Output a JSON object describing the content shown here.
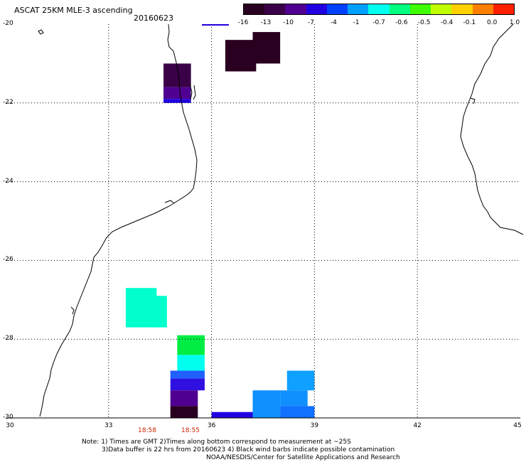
{
  "header": {
    "title": "ASCAT 25KM MLE-3 ascending",
    "date": "20160623"
  },
  "colorbar": {
    "labels": [
      "-16",
      "-13",
      "-10",
      "-7",
      "-4",
      "-1",
      "-0.7",
      "-0.6",
      "-0.5",
      "-0.4",
      "-0.1",
      "0.0",
      "1.0"
    ],
    "colors": [
      "#2a0020",
      "#3a0048",
      "#500090",
      "#2000e0",
      "#0040ff",
      "#00a0ff",
      "#00ffee",
      "#00ff80",
      "#40ff00",
      "#c0ff00",
      "#ffd000",
      "#ff8000",
      "#ff2000"
    ]
  },
  "axes": {
    "x_ticks": [
      "30",
      "33",
      "36",
      "39",
      "42",
      "45"
    ],
    "y_ticks": [
      "-20",
      "-22",
      "-24",
      "-26",
      "-28",
      "-30"
    ],
    "x_range": [
      30,
      45
    ],
    "y_range": [
      -30,
      -20
    ],
    "grid": "dotted"
  },
  "times": [
    "18:58",
    "18:55"
  ],
  "notes": [
    "Note: 1) Times are GMT 2)Times along bottom correspond to measurement at ~25S",
    "3)Data buffer is 22 hrs from 20160623 4) Black wind barbs indicate possible contamination",
    "NOAA/NESDIS/Center for Satellite Applications and Research"
  ],
  "map_data": {
    "type": "swath-cells",
    "cells": [
      {
        "lon": [
          36.4,
          37.3
        ],
        "lat": [
          -21.2,
          -20.4
        ],
        "color": "#2a0020"
      },
      {
        "lon": [
          37.2,
          38.0
        ],
        "lat": [
          -21.0,
          -20.2
        ],
        "color": "#2a0020"
      },
      {
        "lon": [
          34.6,
          35.4
        ],
        "lat": [
          -21.6,
          -21.0
        ],
        "color": "#3a0048"
      },
      {
        "lon": [
          34.6,
          35.4
        ],
        "lat": [
          -21.9,
          -21.6
        ],
        "color": "#500090"
      },
      {
        "lon": [
          34.6,
          35.4
        ],
        "lat": [
          -22.0,
          -21.9
        ],
        "color": "#2000e0"
      },
      {
        "lon": [
          33.5,
          34.4
        ],
        "lat": [
          -27.7,
          -26.7
        ],
        "color": "#00ffcc"
      },
      {
        "lon": [
          34.3,
          34.7
        ],
        "lat": [
          -27.7,
          -26.9
        ],
        "color": "#00ffcc"
      },
      {
        "lon": [
          35.0,
          35.8
        ],
        "lat": [
          -28.4,
          -27.9
        ],
        "color": "#00ee44"
      },
      {
        "lon": [
          35.0,
          35.8
        ],
        "lat": [
          -28.8,
          -28.4
        ],
        "color": "#00ffee"
      },
      {
        "lon": [
          34.8,
          35.8
        ],
        "lat": [
          -29.0,
          -28.8
        ],
        "color": "#2060ff"
      },
      {
        "lon": [
          34.8,
          35.8
        ],
        "lat": [
          -29.3,
          -29.0
        ],
        "color": "#3010e0"
      },
      {
        "lon": [
          34.8,
          35.6
        ],
        "lat": [
          -29.7,
          -29.3
        ],
        "color": "#500090"
      },
      {
        "lon": [
          34.8,
          35.6
        ],
        "lat": [
          -30.0,
          -29.7
        ],
        "color": "#2a0020"
      },
      {
        "lon": [
          36.0,
          37.2
        ],
        "lat": [
          -30.0,
          -29.85
        ],
        "color": "#2000e0"
      },
      {
        "lon": [
          37.2,
          38.0
        ],
        "lat": [
          -30.0,
          -29.3
        ],
        "color": "#1090ff"
      },
      {
        "lon": [
          38.0,
          38.8
        ],
        "lat": [
          -29.7,
          -29.3
        ],
        "color": "#1090ff"
      },
      {
        "lon": [
          38.0,
          39.0
        ],
        "lat": [
          -30.0,
          -29.7
        ],
        "color": "#1070ff"
      },
      {
        "lon": [
          38.2,
          39.0
        ],
        "lat": [
          -29.3,
          -28.8
        ],
        "color": "#10a0ff"
      }
    ]
  }
}
